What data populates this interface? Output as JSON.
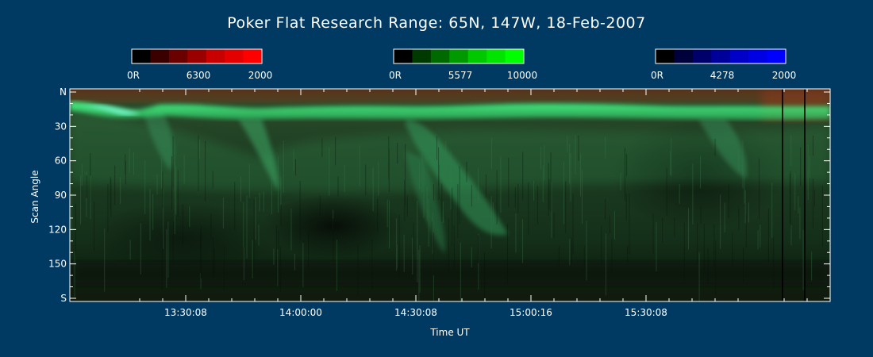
{
  "title": "Poker Flat Research Range: 65N, 147W, 18-Feb-2007",
  "colorbars": [
    {
      "id": "red",
      "labels": [
        "0R",
        "6300",
        "2000"
      ],
      "colors": [
        "#000000",
        "#3a0000",
        "#6a0000",
        "#9a0000",
        "#c80000",
        "#e40000",
        "#ff0000"
      ]
    },
    {
      "id": "green",
      "labels": [
        "0R",
        "5577",
        "10000"
      ],
      "colors": [
        "#000000",
        "#003a00",
        "#006a00",
        "#009a00",
        "#00c800",
        "#00e400",
        "#00ff00"
      ]
    },
    {
      "id": "blue",
      "labels": [
        "0R",
        "4278",
        "2000"
      ],
      "colors": [
        "#000000",
        "#00003a",
        "#00006a",
        "#00009a",
        "#0000c8",
        "#0000e4",
        "#0000ff"
      ]
    }
  ],
  "chart_data": {
    "type": "heatmap",
    "xlabel": "Time UT",
    "ylabel": "Scan Angle",
    "x_ticks": [
      "13:30:08",
      "14:00:00",
      "14:30:08",
      "15:00:16",
      "15:30:08"
    ],
    "y_ticks": [
      "N",
      "30",
      "60",
      "90",
      "120",
      "150",
      "S"
    ],
    "y_tick_values": [
      0,
      30,
      60,
      90,
      120,
      150,
      180
    ],
    "ylim": [
      0,
      180
    ]
  }
}
